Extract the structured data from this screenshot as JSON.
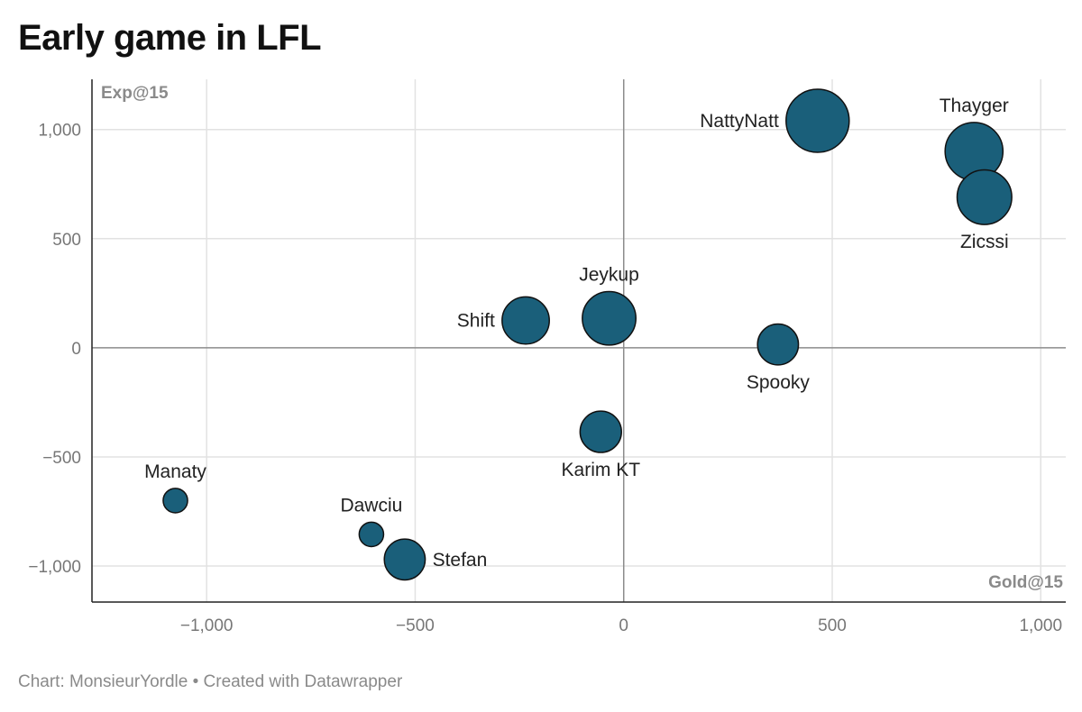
{
  "title": "Early game in LFL",
  "footer": "Chart: MonsieurYordle • Created with Datawrapper",
  "colors": {
    "bubble": "#1a5f7a",
    "bubble_stroke": "#111111",
    "grid": "#e2e2e2",
    "zero_line": "#8c8c8c"
  },
  "chart_data": {
    "type": "scatter",
    "xlabel": "Gold@15",
    "ylabel": "Exp@15",
    "xlim": [
      -1275,
      1060
    ],
    "ylim": [
      -1165,
      1230
    ],
    "xticks": [
      -1000,
      -500,
      0,
      500,
      1000
    ],
    "xtick_labels": [
      "−1,000",
      "−500",
      "0",
      "500",
      "1,000"
    ],
    "yticks": [
      1000,
      500,
      0,
      -500,
      -1000
    ],
    "ytick_labels": [
      "1,000",
      "500",
      "0",
      "−500",
      "−1,000"
    ],
    "grid": true,
    "points": [
      {
        "name": "NattyNatt",
        "x": 465,
        "y": 1040,
        "size": 1.0,
        "label_pos": "left"
      },
      {
        "name": "Thayger",
        "x": 840,
        "y": 900,
        "size": 0.84,
        "label_pos": "top"
      },
      {
        "name": "Zicssi",
        "x": 865,
        "y": 690,
        "size": 0.75,
        "label_pos": "bottom"
      },
      {
        "name": "Jeykup",
        "x": -35,
        "y": 135,
        "size": 0.72,
        "label_pos": "top"
      },
      {
        "name": "Shift",
        "x": -235,
        "y": 125,
        "size": 0.56,
        "label_pos": "left"
      },
      {
        "name": "Spooky",
        "x": 370,
        "y": 15,
        "size": 0.42,
        "label_pos": "bottom"
      },
      {
        "name": "Karim KT",
        "x": -55,
        "y": -385,
        "size": 0.43,
        "label_pos": "bottom"
      },
      {
        "name": "Manaty",
        "x": -1075,
        "y": -700,
        "size": 0.15,
        "label_pos": "top"
      },
      {
        "name": "Dawciu",
        "x": -605,
        "y": -855,
        "size": 0.15,
        "label_pos": "top"
      },
      {
        "name": "Stefan",
        "x": -525,
        "y": -970,
        "size": 0.42,
        "label_pos": "right"
      }
    ]
  }
}
